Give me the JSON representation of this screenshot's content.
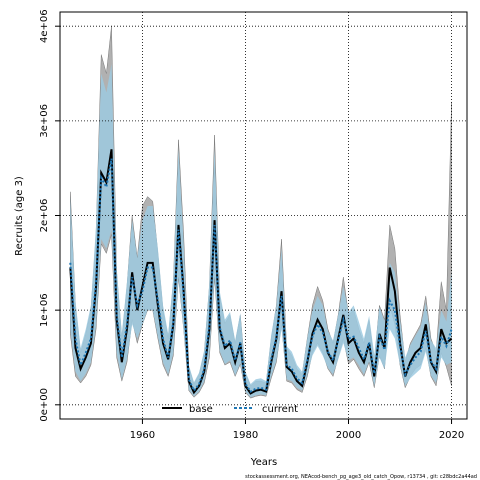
{
  "chart_data": {
    "type": "line",
    "title": "",
    "xlabel": "Years",
    "ylabel": "Recruits (age 3)",
    "xlim": [
      1944,
      2023
    ],
    "ylim": [
      -150000,
      4150000
    ],
    "x_ticks": [
      1960,
      1980,
      2000,
      2020
    ],
    "y_ticks": [
      0,
      1000000,
      2000000,
      3000000,
      4000000
    ],
    "x_tick_labels": [
      "1960",
      "1980",
      "2000",
      "2020"
    ],
    "y_tick_labels": [
      "0e+00",
      "1e+06",
      "2e+06",
      "3e+06",
      "4e+06"
    ],
    "grid": true,
    "legend_position": "bottom-center",
    "footnote": "stockassessment.org, NEAcod-bench_pg_age3_old_catch_Opow, r13734 , git: c28bdc2a44ad",
    "colors": {
      "base_line": "#000000",
      "current_line": "#1f77b4",
      "base_band": "#a8a8a8",
      "current_band": "#9ecae1",
      "grid": "#000000"
    },
    "x": [
      1946,
      1947,
      1948,
      1949,
      1950,
      1951,
      1952,
      1953,
      1954,
      1955,
      1956,
      1957,
      1958,
      1959,
      1960,
      1961,
      1962,
      1963,
      1964,
      1965,
      1966,
      1967,
      1968,
      1969,
      1970,
      1971,
      1972,
      1973,
      1974,
      1975,
      1976,
      1977,
      1978,
      1979,
      1980,
      1981,
      1982,
      1983,
      1984,
      1985,
      1986,
      1987,
      1988,
      1989,
      1990,
      1991,
      1992,
      1993,
      1994,
      1995,
      1996,
      1997,
      1998,
      1999,
      2000,
      2001,
      2002,
      2003,
      2004,
      2005,
      2006,
      2007,
      2008,
      2009,
      2010,
      2011,
      2012,
      2013,
      2014,
      2015,
      2016,
      2017,
      2018,
      2019,
      2020
    ],
    "series": [
      {
        "name": "base",
        "values": [
          1450000,
          600000,
          380000,
          500000,
          650000,
          1250000,
          2450000,
          2350000,
          2700000,
          900000,
          450000,
          800000,
          1400000,
          1000000,
          1250000,
          1500000,
          1500000,
          1050000,
          650000,
          480000,
          850000,
          1900000,
          1200000,
          250000,
          130000,
          200000,
          350000,
          800000,
          1950000,
          800000,
          600000,
          650000,
          450000,
          650000,
          200000,
          120000,
          150000,
          160000,
          140000,
          450000,
          700000,
          1200000,
          400000,
          350000,
          250000,
          200000,
          450000,
          750000,
          900000,
          800000,
          550000,
          450000,
          700000,
          950000,
          650000,
          700000,
          550000,
          450000,
          650000,
          300000,
          750000,
          600000,
          1450000,
          1200000,
          650000,
          300000,
          450000,
          550000,
          600000,
          850000,
          450000,
          350000,
          800000,
          650000,
          700000
        ],
        "lower": [
          750000,
          300000,
          230000,
          300000,
          420000,
          800000,
          1700000,
          1600000,
          1800000,
          500000,
          250000,
          450000,
          900000,
          650000,
          850000,
          1000000,
          1000000,
          700000,
          420000,
          300000,
          520000,
          1350000,
          800000,
          150000,
          80000,
          130000,
          230000,
          500000,
          1350000,
          550000,
          420000,
          450000,
          300000,
          430000,
          130000,
          70000,
          90000,
          100000,
          90000,
          280000,
          450000,
          850000,
          250000,
          230000,
          160000,
          130000,
          300000,
          550000,
          650000,
          550000,
          380000,
          300000,
          500000,
          700000,
          430000,
          480000,
          380000,
          300000,
          450000,
          180000,
          520000,
          380000,
          1050000,
          850000,
          420000,
          180000,
          300000,
          380000,
          420000,
          600000,
          300000,
          200000,
          550000,
          400000,
          200000
        ],
        "upper": [
          2250000,
          1050000,
          550000,
          750000,
          1000000,
          1800000,
          3700000,
          3500000,
          4000000,
          1400000,
          700000,
          1250000,
          2000000,
          1550000,
          2100000,
          2200000,
          2150000,
          1600000,
          1000000,
          700000,
          1300000,
          2800000,
          1800000,
          400000,
          220000,
          320000,
          550000,
          1250000,
          2850000,
          1150000,
          860000,
          950000,
          650000,
          950000,
          330000,
          200000,
          250000,
          250000,
          230000,
          700000,
          1050000,
          1750000,
          600000,
          520000,
          380000,
          320000,
          700000,
          1050000,
          1250000,
          1100000,
          800000,
          650000,
          950000,
          1350000,
          950000,
          1000000,
          800000,
          650000,
          900000,
          450000,
          1050000,
          900000,
          1900000,
          1650000,
          950000,
          450000,
          650000,
          750000,
          850000,
          1150000,
          700000,
          550000,
          1300000,
          1000000,
          3200000
        ]
      },
      {
        "name": "current",
        "values": [
          1500000,
          700000,
          420000,
          550000,
          700000,
          1300000,
          2400000,
          2300000,
          2600000,
          950000,
          500000,
          850000,
          1350000,
          1050000,
          1200000,
          1450000,
          1450000,
          1100000,
          700000,
          500000,
          880000,
          1850000,
          1150000,
          270000,
          150000,
          220000,
          380000,
          850000,
          1900000,
          820000,
          620000,
          680000,
          470000,
          660000,
          220000,
          140000,
          170000,
          180000,
          160000,
          480000,
          720000,
          1150000,
          420000,
          380000,
          280000,
          230000,
          470000,
          720000,
          850000,
          760000,
          560000,
          470000,
          680000,
          900000,
          700000,
          720000,
          600000,
          480000,
          660000,
          330000,
          720000,
          580000,
          1100000,
          1000000,
          620000,
          320000,
          420000,
          500000,
          560000,
          780000,
          460000,
          380000,
          720000,
          620000,
          800000
        ],
        "lower": [
          800000,
          350000,
          250000,
          330000,
          450000,
          850000,
          1750000,
          1650000,
          1850000,
          550000,
          270000,
          480000,
          850000,
          700000,
          850000,
          1000000,
          1000000,
          720000,
          450000,
          320000,
          550000,
          1350000,
          780000,
          160000,
          90000,
          140000,
          250000,
          550000,
          1350000,
          570000,
          430000,
          470000,
          310000,
          440000,
          140000,
          80000,
          100000,
          110000,
          100000,
          300000,
          470000,
          800000,
          270000,
          250000,
          180000,
          150000,
          320000,
          520000,
          620000,
          520000,
          390000,
          320000,
          480000,
          650000,
          470000,
          500000,
          420000,
          320000,
          460000,
          200000,
          500000,
          380000,
          800000,
          700000,
          420000,
          200000,
          280000,
          330000,
          380000,
          560000,
          310000,
          230000,
          500000,
          420000,
          450000
        ],
        "upper": [
          2200000,
          1100000,
          600000,
          800000,
          1050000,
          1900000,
          3500000,
          3300000,
          3600000,
          1450000,
          750000,
          1300000,
          1950000,
          1550000,
          1950000,
          2100000,
          2100000,
          1650000,
          1050000,
          750000,
          1350000,
          2700000,
          1700000,
          420000,
          240000,
          340000,
          580000,
          1300000,
          2700000,
          1200000,
          900000,
          980000,
          680000,
          970000,
          350000,
          220000,
          270000,
          280000,
          250000,
          740000,
          1050000,
          1650000,
          620000,
          560000,
          420000,
          350000,
          700000,
          1000000,
          1150000,
          1050000,
          780000,
          680000,
          950000,
          1250000,
          980000,
          1050000,
          880000,
          700000,
          940000,
          530000,
          1030000,
          880000,
          1500000,
          1400000,
          900000,
          500000,
          630000,
          730000,
          820000,
          1080000,
          680000,
          600000,
          1000000,
          880000,
          1400000
        ]
      }
    ]
  }
}
